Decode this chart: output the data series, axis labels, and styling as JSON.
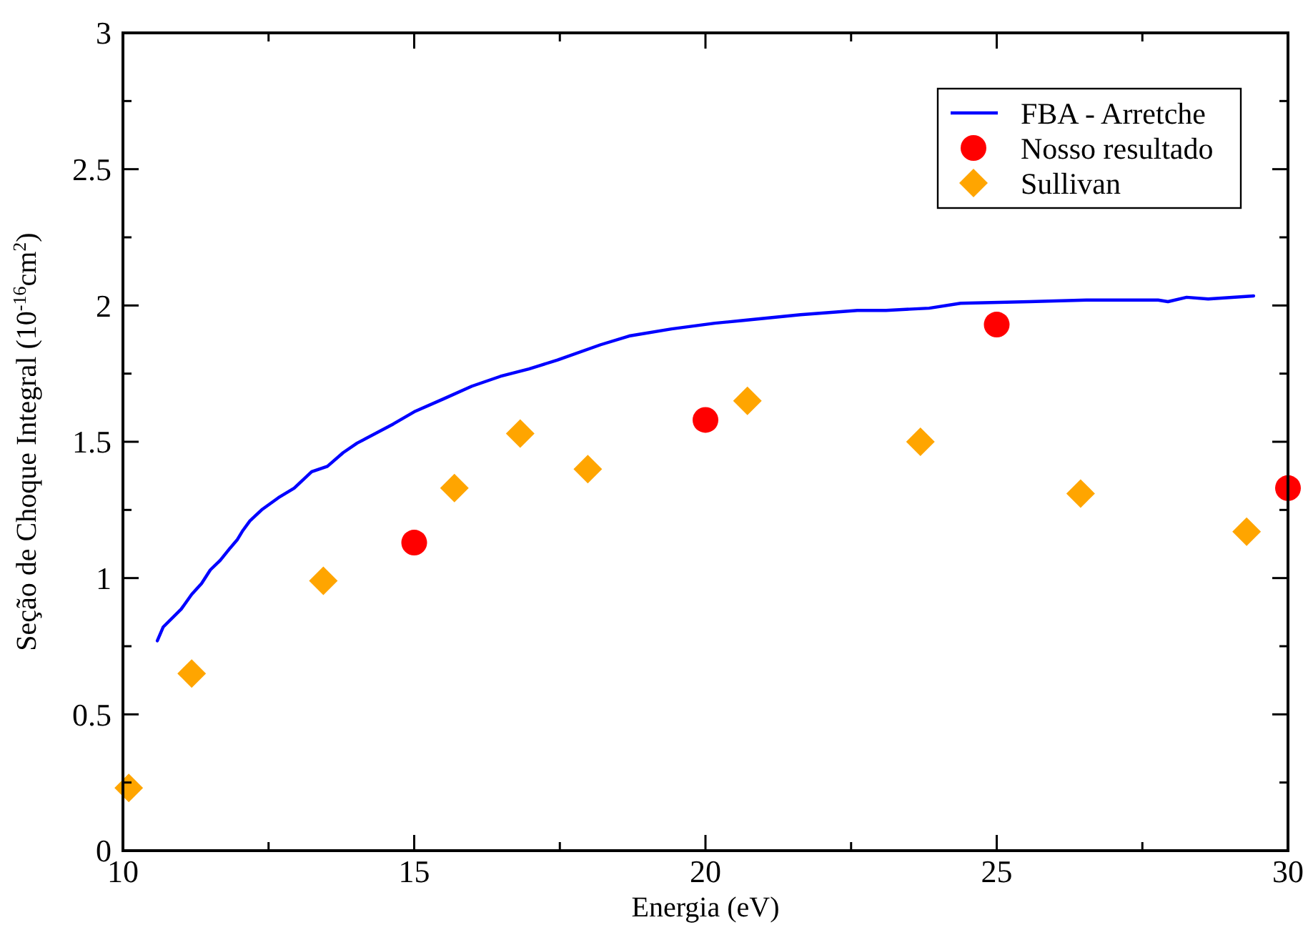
{
  "chart_data": {
    "type": "line",
    "xlabel": "Energia (eV)",
    "ylabel": "Seção de Choque Integral (10$^{-16}$cm$^{2}$)",
    "xlim": [
      10,
      30
    ],
    "ylim": [
      0,
      3
    ],
    "xticks": [
      10,
      {
        "value": 12.5,
        "label": null
      },
      15,
      {
        "value": 17.5,
        "label": null
      },
      20,
      {
        "value": 22.5,
        "label": null
      },
      25,
      {
        "value": 27.5,
        "label": null
      },
      30
    ],
    "yticks": [
      0,
      {
        "value": 0.25,
        "label": null
      },
      0.5,
      {
        "value": 0.75,
        "label": null
      },
      1,
      {
        "value": 1.25,
        "label": null
      },
      1.5,
      {
        "value": 1.75,
        "label": null
      },
      2,
      {
        "value": 2.25,
        "label": null
      },
      2.5,
      {
        "value": 2.75,
        "label": null
      },
      3
    ],
    "legend": "top right",
    "series": [
      {
        "name": "FBA - Arretche",
        "type": "line",
        "color": "#0000ff",
        "marker": "none",
        "line_style": "solid",
        "x": [
          10.59,
          10.69,
          11.0,
          11.18,
          11.35,
          11.5,
          11.67,
          11.84,
          11.96,
          12.06,
          12.18,
          12.38,
          12.67,
          12.94,
          13.24,
          13.51,
          13.78,
          14.02,
          14.64,
          15.0,
          15.5,
          15.99,
          16.48,
          16.97,
          17.46,
          18.2,
          18.69,
          19.42,
          20.16,
          20.65,
          21.63,
          22.61,
          23.1,
          23.84,
          24.38,
          25.56,
          26.54,
          27.28,
          27.77,
          27.94,
          28.26,
          28.63,
          29.41
        ],
        "values": [
          0.77,
          0.82,
          0.886,
          0.94,
          0.98,
          1.03,
          1.065,
          1.11,
          1.14,
          1.175,
          1.21,
          1.25,
          1.295,
          1.33,
          1.39,
          1.41,
          1.46,
          1.495,
          1.565,
          1.61,
          1.657,
          1.704,
          1.74,
          1.767,
          1.8,
          1.856,
          1.888,
          1.914,
          1.935,
          1.945,
          1.966,
          1.982,
          1.982,
          1.99,
          2.008,
          2.014,
          2.02,
          2.02,
          2.02,
          2.014,
          2.03,
          2.024,
          2.035
        ]
      },
      {
        "name": "Nosso resultado",
        "type": "scatter",
        "color": "#ff0000",
        "marker": "circle",
        "x": [
          15,
          20,
          25,
          30
        ],
        "values": [
          1.13,
          1.58,
          1.93,
          1.33
        ]
      },
      {
        "name": "Sullivan",
        "type": "scatter",
        "color": "#ffa500",
        "marker": "diamond",
        "x": [
          10.1,
          11.18,
          13.44,
          15.69,
          16.82,
          17.98,
          20.72,
          23.69,
          26.44,
          29.29
        ],
        "values": [
          0.23,
          0.65,
          0.99,
          1.33,
          1.53,
          1.4,
          1.65,
          1.5,
          1.31,
          1.17
        ]
      }
    ]
  }
}
